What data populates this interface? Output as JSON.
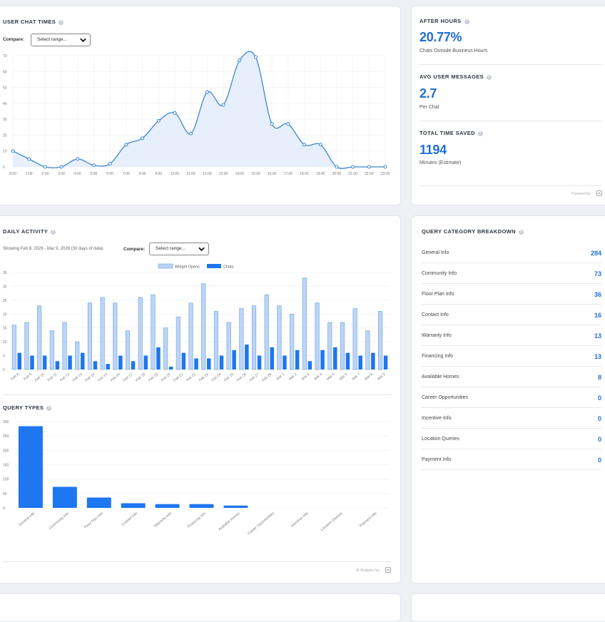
{
  "colors": {
    "accent": "#1f6fd8",
    "bar_light": "#bcd4f6",
    "bar_dark": "#1e76f0",
    "line": "#3f86d3",
    "area": "#e6effb"
  },
  "compare_label": "Compare:",
  "select_placeholder": "Select range...",
  "chat_times": {
    "title": "USER CHAT TIMES",
    "chart_data": {
      "type": "area",
      "x": [
        "0:00",
        "1:00",
        "2:00",
        "3:00",
        "4:00",
        "5:00",
        "6:00",
        "7:00",
        "8:00",
        "9:00",
        "10:00",
        "11:00",
        "12:00",
        "13:00",
        "14:00",
        "15:00",
        "16:00",
        "17:00",
        "18:00",
        "19:00",
        "20:00",
        "21:00",
        "22:00",
        "23:00"
      ],
      "y": [
        10,
        5,
        0,
        0,
        5,
        1,
        2,
        14,
        18,
        29,
        34,
        21,
        47,
        39,
        67,
        69,
        27,
        27,
        14,
        14,
        0,
        0,
        0,
        0
      ],
      "yticks": [
        0,
        10,
        20,
        30,
        40,
        50,
        60,
        70
      ],
      "ylim": [
        0,
        70
      ]
    }
  },
  "after_hours": {
    "title": "AFTER HOURS",
    "value": "20.77%",
    "sub": "Chats Outside Business Hours"
  },
  "avg_messages": {
    "title": "AVG USER MESSAGES",
    "value": "2.7",
    "sub": "Per Chat"
  },
  "time_saved": {
    "title": "TOTAL TIME SAVED",
    "value": "1194",
    "sub": "Minutes (Estimate)"
  },
  "powered_by": "Powered by",
  "daily_activity": {
    "title": "DAILY ACTIVITY",
    "range_text": "Showing Feb 8, 2026 - Mar 9, 2026 (30 days of data)",
    "chart_data": {
      "type": "bar",
      "categories": [
        "Feb 8",
        "Feb 9",
        "Feb 10",
        "Feb 11",
        "Feb 12",
        "Feb 13",
        "Feb 14",
        "Feb 15",
        "Feb 16",
        "Feb 17",
        "Feb 18",
        "Feb 19",
        "Feb 20",
        "Feb 21",
        "Feb 22",
        "Feb 23",
        "Feb 24",
        "Feb 25",
        "Feb 26",
        "Feb 27",
        "Feb 28",
        "Mar 1",
        "Mar 2",
        "Mar 3",
        "Mar 4",
        "Mar 5",
        "Mar 6",
        "Mar 7",
        "Mar 8",
        "Mar 9"
      ],
      "series": [
        {
          "name": "Widget Opens",
          "values": [
            16,
            17,
            23,
            14,
            17,
            10,
            24,
            26,
            24,
            14,
            26,
            27,
            15,
            19,
            24,
            31,
            21,
            17,
            22,
            23,
            27,
            23,
            20,
            33,
            24,
            17,
            17,
            22,
            14,
            21
          ]
        },
        {
          "name": "Chats",
          "values": [
            6,
            5,
            5,
            3,
            5,
            6,
            3,
            2,
            5,
            3,
            5,
            8,
            1,
            6,
            4,
            4,
            5,
            7,
            9,
            5,
            8,
            5,
            7,
            3,
            7,
            8,
            6,
            5,
            6,
            5
          ]
        }
      ],
      "yticks": [
        0,
        5,
        10,
        15,
        20,
        25,
        30,
        35
      ],
      "ylim": [
        0,
        35
      ]
    }
  },
  "query_types": {
    "title": "QUERY TYPES",
    "chart_data": {
      "type": "bar",
      "categories": [
        "General Info",
        "Community Info",
        "Floor Plan Info",
        "Contact Info",
        "Warranty Info",
        "Financing Info",
        "Available Homes",
        "Career Opportunities",
        "Incentive Info",
        "Location Queries",
        "Payment Info"
      ],
      "values": [
        284,
        73,
        36,
        16,
        13,
        13,
        8,
        0,
        0,
        0,
        0
      ],
      "yticks": [
        0,
        50,
        100,
        150,
        200,
        250,
        300
      ],
      "ylim": [
        0,
        300
      ]
    }
  },
  "ai_analytics": "AI Analytics by",
  "breakdown": {
    "title": "QUERY CATEGORY BREAKDOWN",
    "items": [
      {
        "label": "General Info",
        "value": "284"
      },
      {
        "label": "Community Info",
        "value": "73"
      },
      {
        "label": "Floor Plan Info",
        "value": "36"
      },
      {
        "label": "Contact Info",
        "value": "16"
      },
      {
        "label": "Warranty Info",
        "value": "13"
      },
      {
        "label": "Financing Info",
        "value": "13"
      },
      {
        "label": "Available Homes",
        "value": "8"
      },
      {
        "label": "Career Opportunities",
        "value": "0"
      },
      {
        "label": "Incentive Info",
        "value": "0"
      },
      {
        "label": "Location Queries",
        "value": "0"
      },
      {
        "label": "Payment Info",
        "value": "0"
      }
    ]
  }
}
